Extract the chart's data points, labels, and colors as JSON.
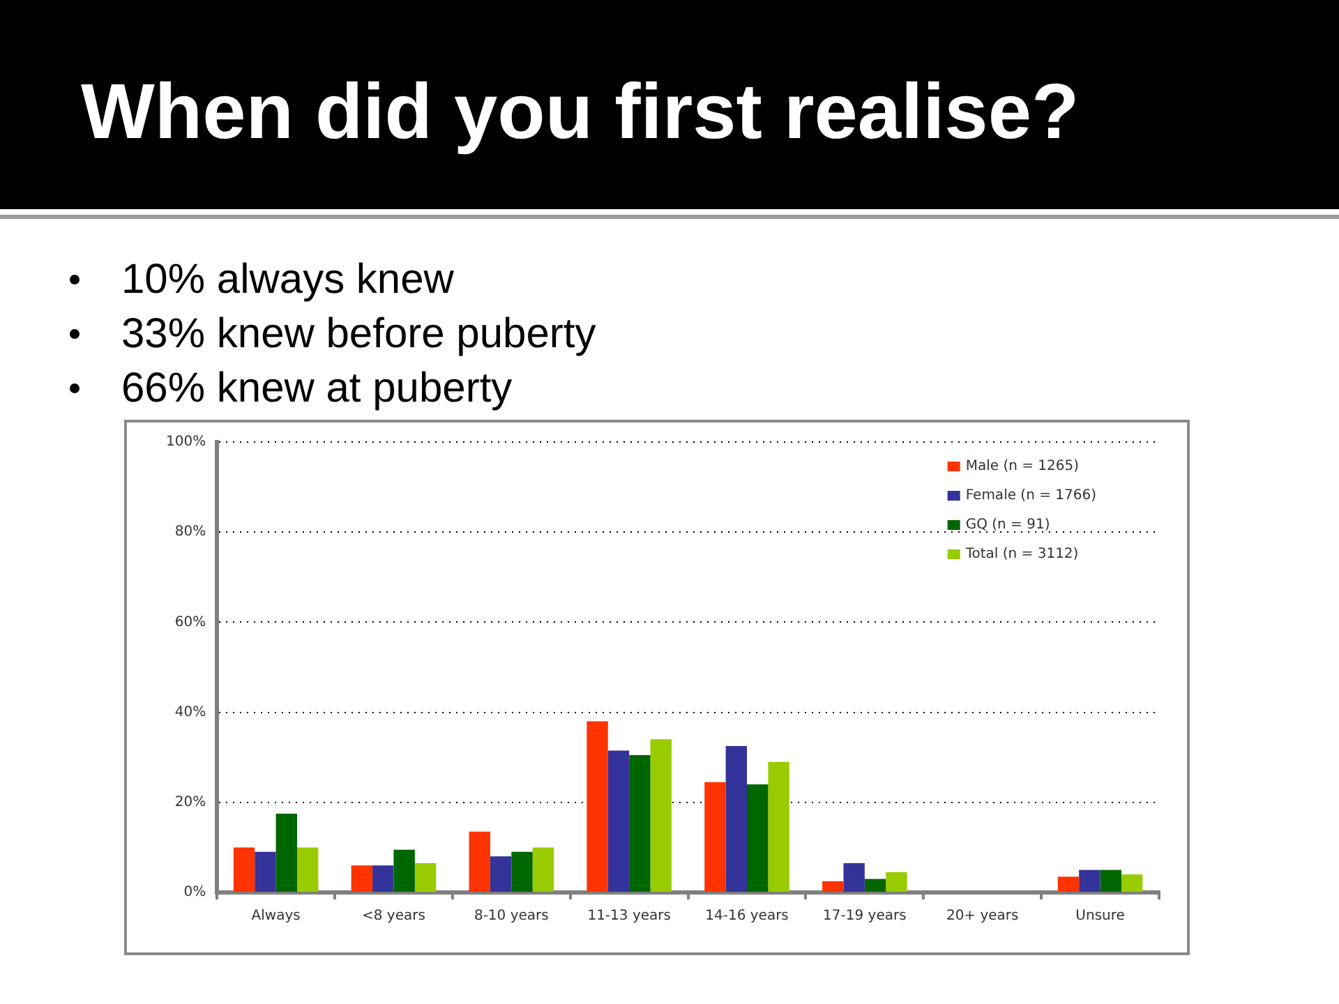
{
  "chart_data": {
    "type": "bar",
    "title": "When did you first realise?",
    "annotations": [
      "10% always knew",
      "33% knew before puberty",
      "66% knew at puberty"
    ],
    "categories": [
      "Always",
      "<8 years",
      "8-10 years",
      "11-13 years",
      "14-16 years",
      "17-19 years",
      "20+ years",
      "Unsure"
    ],
    "series": [
      {
        "name": "Male (n = 1265)",
        "color": "#ff3300",
        "values": [
          10,
          6,
          13.5,
          38,
          24.5,
          2.5,
          0,
          3.5
        ]
      },
      {
        "name": "Female (n = 1766)",
        "color": "#333399",
        "values": [
          9,
          6,
          8,
          31.5,
          32.5,
          6.5,
          0,
          5
        ]
      },
      {
        "name": "GQ (n = 91)",
        "color": "#006600",
        "values": [
          17.5,
          9.5,
          9,
          30.5,
          24,
          3,
          0,
          5
        ]
      },
      {
        "name": "Total (n = 3112)",
        "color": "#99cc00",
        "values": [
          10,
          6.5,
          10,
          34,
          29,
          4.5,
          0,
          4
        ]
      }
    ],
    "ylim": [
      0,
      100
    ],
    "yticks": [
      {
        "value": 0,
        "label": "0%"
      },
      {
        "value": 20,
        "label": "20%"
      },
      {
        "value": 40,
        "label": "40%"
      },
      {
        "value": 60,
        "label": "60%"
      },
      {
        "value": 80,
        "label": "80%"
      },
      {
        "value": 100,
        "label": "100%"
      }
    ],
    "grid": "y",
    "legend": "top right"
  }
}
